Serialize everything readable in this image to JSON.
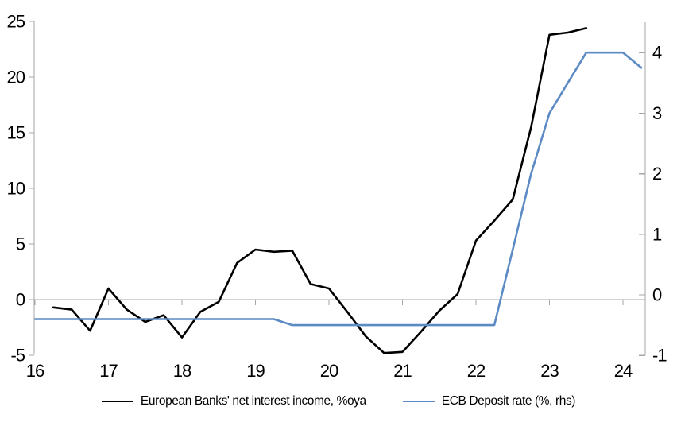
{
  "chart_data": {
    "type": "line",
    "title": "",
    "xlabel": "",
    "ylabel_left": "",
    "ylabel_right": "",
    "grid": "zero-line-only",
    "legend_position": "bottom",
    "x_year_tick_labels": [
      "16",
      "17",
      "18",
      "19",
      "20",
      "21",
      "22",
      "23",
      "24"
    ],
    "left_axis": {
      "ticks": [
        -5,
        0,
        5,
        10,
        15,
        20,
        25
      ],
      "tick_labels": [
        "-5",
        "0",
        "5",
        "10",
        "15",
        "20",
        "25"
      ],
      "range": [
        -5,
        25
      ]
    },
    "right_axis": {
      "ticks": [
        -1,
        0,
        1,
        2,
        3,
        4
      ],
      "tick_labels": [
        "-1",
        "0",
        "1",
        "2",
        "3",
        "4"
      ],
      "range": [
        -1,
        4.5
      ]
    },
    "x_quarters": [
      "2016Q1",
      "2016Q2",
      "2016Q3",
      "2016Q4",
      "2017Q1",
      "2017Q2",
      "2017Q3",
      "2017Q4",
      "2018Q1",
      "2018Q2",
      "2018Q3",
      "2018Q4",
      "2019Q1",
      "2019Q2",
      "2019Q3",
      "2019Q4",
      "2020Q1",
      "2020Q2",
      "2020Q3",
      "2020Q4",
      "2021Q1",
      "2021Q2",
      "2021Q3",
      "2021Q4",
      "2022Q1",
      "2022Q2",
      "2022Q3",
      "2022Q4",
      "2023Q1",
      "2023Q2",
      "2023Q3",
      "2023Q4",
      "2024Q1",
      "2024Q2"
    ],
    "series": [
      {
        "id": "nii",
        "name": "European Banks' net interest income, %oya",
        "axis": "left",
        "color": "#000000",
        "values": [
          null,
          -0.7,
          -0.9,
          -2.8,
          1.0,
          -0.9,
          -2.0,
          -1.4,
          -3.4,
          -1.1,
          -0.2,
          3.3,
          4.5,
          4.3,
          4.4,
          1.4,
          1.0,
          -1.1,
          -3.3,
          -4.8,
          -4.7,
          -2.9,
          -1.0,
          0.5,
          5.3,
          7.1,
          9.0,
          15.5,
          23.8,
          24.0,
          24.4,
          null,
          null,
          null
        ]
      },
      {
        "id": "ecb",
        "name": "ECB Deposit rate (%, rhs)",
        "axis": "right",
        "color": "#5b8ac4",
        "values": [
          -0.4,
          -0.4,
          -0.4,
          -0.4,
          -0.4,
          -0.4,
          -0.4,
          -0.4,
          -0.4,
          -0.4,
          -0.4,
          -0.4,
          -0.4,
          -0.4,
          -0.5,
          -0.5,
          -0.5,
          -0.5,
          -0.5,
          -0.5,
          -0.5,
          -0.5,
          -0.5,
          -0.5,
          -0.5,
          -0.5,
          0.75,
          2.0,
          3.0,
          3.5,
          4.0,
          4.0,
          4.0,
          3.75
        ]
      }
    ]
  },
  "colors": {
    "axis_line": "#a6a6a6",
    "text": "#000000",
    "background": "#ffffff"
  }
}
